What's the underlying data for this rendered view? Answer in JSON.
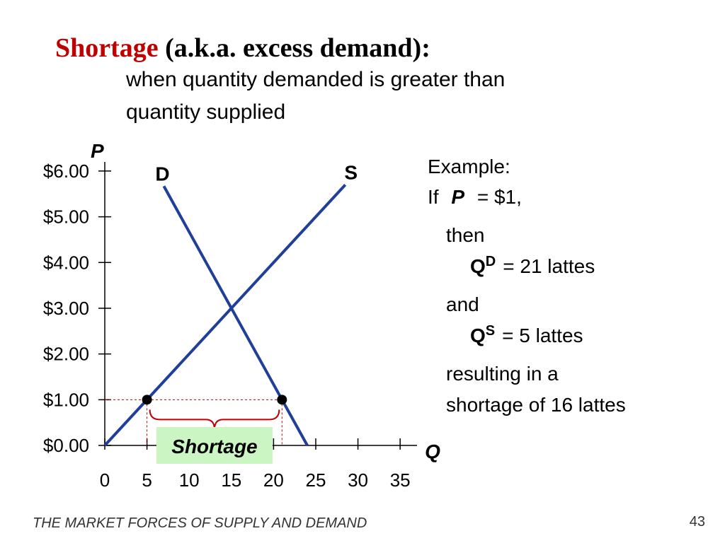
{
  "slide": {
    "title_highlight": "Shortage",
    "title_rest": "(a.k.a. excess demand):",
    "subtitle_lines": [
      "when quantity demanded is greater than",
      "quantity supplied"
    ],
    "example": {
      "heading": "Example:",
      "if": "If",
      "p": "P",
      "p_value": "=  $1,",
      "then": "then",
      "qd_q": "Q",
      "qd_sup": "D",
      "qd_rest": "=  21 lattes",
      "and": "and",
      "qs_q": "Q",
      "qs_sup": "S",
      "qs_rest": "=  5 lattes",
      "result_lines": [
        "resulting in a",
        "shortage of 16 lattes"
      ]
    },
    "footer": "THE MARKET FORCES OF SUPPLY AND DEMAND",
    "page_number": "43"
  },
  "chart_data": {
    "type": "line",
    "y_label": "P",
    "x_label": "Q",
    "xlim": [
      0,
      37
    ],
    "ylim": [
      0,
      6.2
    ],
    "xticks": [
      0,
      5,
      10,
      15,
      20,
      25,
      30,
      35
    ],
    "yticks": [
      {
        "value": 0,
        "label": "$0.00"
      },
      {
        "value": 1,
        "label": "$1.00"
      },
      {
        "value": 2,
        "label": "$2.00"
      },
      {
        "value": 3,
        "label": "$3.00"
      },
      {
        "value": 4,
        "label": "$4.00"
      },
      {
        "value": 5,
        "label": "$5.00"
      },
      {
        "value": 6,
        "label": "$6.00"
      }
    ],
    "series": [
      {
        "name": "D",
        "color": "#1f3f99",
        "x": [
          7,
          24
        ],
        "values": [
          5.67,
          0
        ]
      },
      {
        "name": "S",
        "color": "#1f3f99",
        "x": [
          0,
          28.5
        ],
        "values": [
          0,
          5.7
        ]
      }
    ],
    "points": {
      "x": [
        5,
        21
      ],
      "values": [
        1,
        1
      ],
      "color": "#000000"
    },
    "shortage_label": "Shortage"
  }
}
